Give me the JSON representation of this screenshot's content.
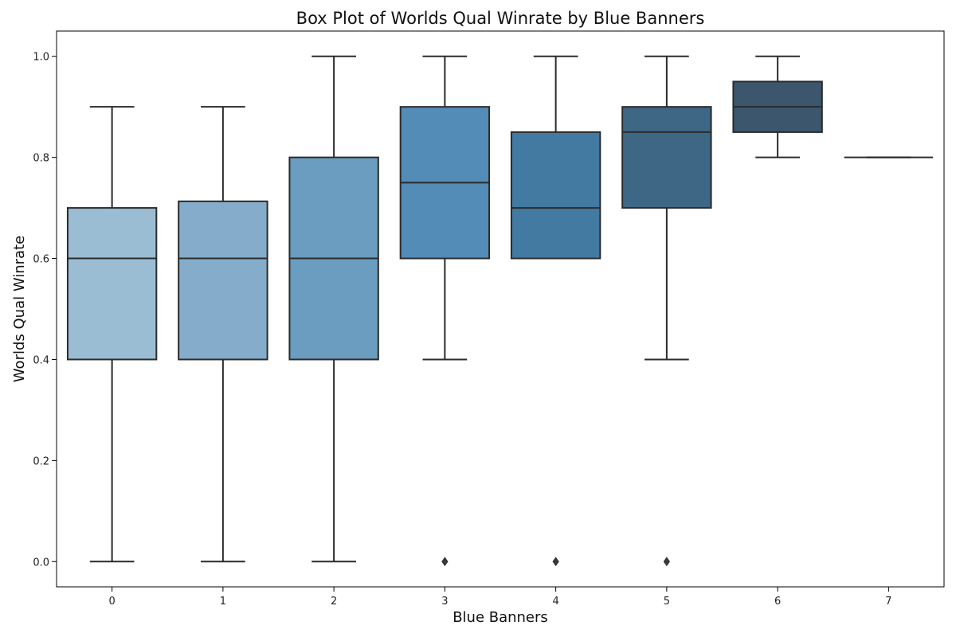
{
  "chart_data": {
    "type": "box",
    "title": "Box Plot of Worlds Qual Winrate by Blue Banners",
    "xlabel": "Blue Banners",
    "ylabel": "Worlds Qual Winrate",
    "ylim": [
      -0.05,
      1.05
    ],
    "yticks": [
      "0.0",
      "0.2",
      "0.4",
      "0.6",
      "0.8",
      "1.0"
    ],
    "grid": false,
    "legend": "none",
    "categories": [
      "0",
      "1",
      "2",
      "3",
      "4",
      "5",
      "6",
      "7"
    ],
    "boxes": [
      {
        "category": "0",
        "whisker_low": 0.0,
        "q1": 0.4,
        "median": 0.6,
        "q3": 0.7,
        "whisker_high": 0.9,
        "outliers": [],
        "color": "#9abdd4"
      },
      {
        "category": "1",
        "whisker_low": 0.0,
        "q1": 0.4,
        "median": 0.6,
        "q3": 0.713,
        "whisker_high": 0.9,
        "outliers": [],
        "color": "#85adcb"
      },
      {
        "category": "2",
        "whisker_low": 0.0,
        "q1": 0.4,
        "median": 0.6,
        "q3": 0.8,
        "whisker_high": 1.0,
        "outliers": [],
        "color": "#6a9dbf"
      },
      {
        "category": "3",
        "whisker_low": 0.4,
        "q1": 0.6,
        "median": 0.75,
        "q3": 0.9,
        "whisker_high": 1.0,
        "outliers": [
          0.0
        ],
        "color": "#528cb7"
      },
      {
        "category": "4",
        "whisker_low": 0.6,
        "q1": 0.6,
        "median": 0.7,
        "q3": 0.85,
        "whisker_high": 1.0,
        "outliers": [
          0.0
        ],
        "color": "#427aa1"
      },
      {
        "category": "5",
        "whisker_low": 0.4,
        "q1": 0.7,
        "median": 0.85,
        "q3": 0.9,
        "whisker_high": 1.0,
        "outliers": [
          0.0
        ],
        "color": "#3e6786"
      },
      {
        "category": "6",
        "whisker_low": 0.8,
        "q1": 0.85,
        "median": 0.9,
        "q3": 0.95,
        "whisker_high": 1.0,
        "outliers": [],
        "color": "#3b566d"
      },
      {
        "category": "7",
        "whisker_low": 0.8,
        "q1": 0.8,
        "median": 0.8,
        "q3": 0.8,
        "whisker_high": 0.8,
        "outliers": [],
        "color": "#34495e"
      }
    ],
    "colors": {
      "line": "#2b2b2b",
      "axis": "#000000"
    }
  }
}
